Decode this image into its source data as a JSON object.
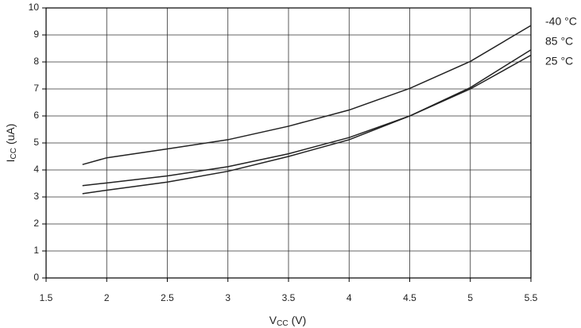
{
  "chart_data": {
    "type": "line",
    "xlabel": {
      "main": "V",
      "sub": "CC",
      "rest": "(V)"
    },
    "ylabel": {
      "main": "I",
      "sub": "CC",
      "rest": "(uA)"
    },
    "x": [
      1.8,
      2.0,
      2.5,
      3.0,
      3.5,
      4.0,
      4.5,
      5.0,
      5.5
    ],
    "series": [
      {
        "name": "-40 °C",
        "color": "#222222",
        "values": [
          4.2,
          4.45,
          4.78,
          5.12,
          5.62,
          6.22,
          7.02,
          8.02,
          9.35
        ]
      },
      {
        "name": "85 °C",
        "color": "#222222",
        "values": [
          3.42,
          3.52,
          3.78,
          4.12,
          4.6,
          5.2,
          6.0,
          7.05,
          8.45
        ]
      },
      {
        "name": "25 °C",
        "color": "#222222",
        "values": [
          3.12,
          3.25,
          3.55,
          3.95,
          4.5,
          5.12,
          6.0,
          7.0,
          8.25
        ]
      }
    ],
    "xlim": [
      1.5,
      5.5
    ],
    "xticks": [
      1.5,
      2,
      2.5,
      3,
      3.5,
      4,
      4.5,
      5,
      5.5
    ],
    "ylim": [
      0,
      10
    ],
    "yticks": [
      0,
      1,
      2,
      3,
      4,
      5,
      6,
      7,
      8,
      9,
      10
    ],
    "grid": true,
    "legend": "right"
  }
}
